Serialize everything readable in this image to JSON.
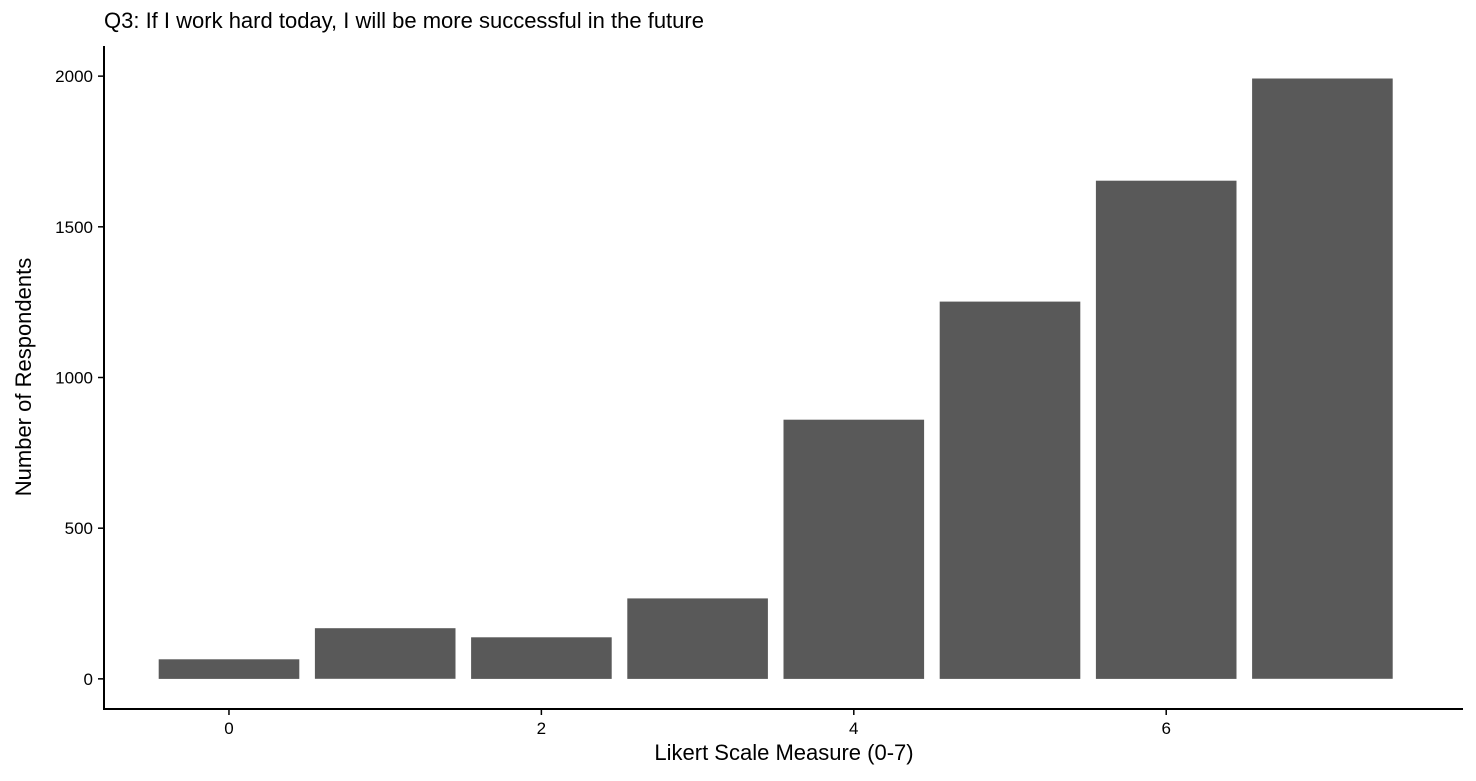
{
  "chart_data": {
    "type": "bar",
    "title": "Q3: If I work hard today, I will be more successful in the future",
    "xlabel": "Likert Scale Measure (0-7)",
    "ylabel": "Number of Respondents",
    "x": [
      0,
      1,
      2,
      3,
      4,
      5,
      6,
      7
    ],
    "values": [
      65,
      168,
      138,
      267,
      860,
      1252,
      1653,
      1992
    ],
    "xticks": [
      0,
      2,
      4,
      6
    ],
    "yticks": [
      0,
      500,
      1000,
      1500,
      2000
    ],
    "xlim": [
      -0.8,
      7.9
    ],
    "ylim": [
      -100,
      2100
    ],
    "grid": false,
    "legend": "none",
    "bar_color": "#595959"
  }
}
